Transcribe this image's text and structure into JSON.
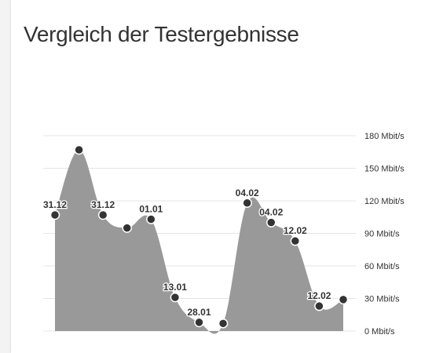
{
  "page": {
    "title": "Vergleich der Testergebnisse"
  },
  "chart_data": {
    "type": "area",
    "title": "Vergleich der Testergebnisse",
    "xlabel": "",
    "ylabel": "",
    "y_unit": "Mbit/s",
    "ylim": [
      0,
      180
    ],
    "yticks": [
      0,
      30,
      60,
      90,
      120,
      150,
      180
    ],
    "ytick_labels": [
      "0 Mbit/s",
      "30 Mbit/s",
      "60 Mbit/s",
      "90 Mbit/s",
      "120 Mbit/s",
      "150 Mbit/s",
      "180 Mbit/s"
    ],
    "y_axis_position": "right",
    "grid": true,
    "legend": "none",
    "series": [
      {
        "values": [
          107,
          167,
          107,
          95,
          103,
          31,
          8,
          7,
          118,
          100,
          83,
          23,
          29
        ],
        "point_labels": [
          "31.12",
          "",
          "31.12",
          "",
          "01.01",
          "13.01",
          "28.01",
          "",
          "04.02",
          "04.02",
          "12.02",
          "12.02",
          ""
        ]
      }
    ],
    "colors": {
      "area": "#999999",
      "marker_fill": "#333333",
      "marker_stroke": "#ffffff",
      "grid": "#e6e6e6",
      "label": "#333333"
    }
  }
}
